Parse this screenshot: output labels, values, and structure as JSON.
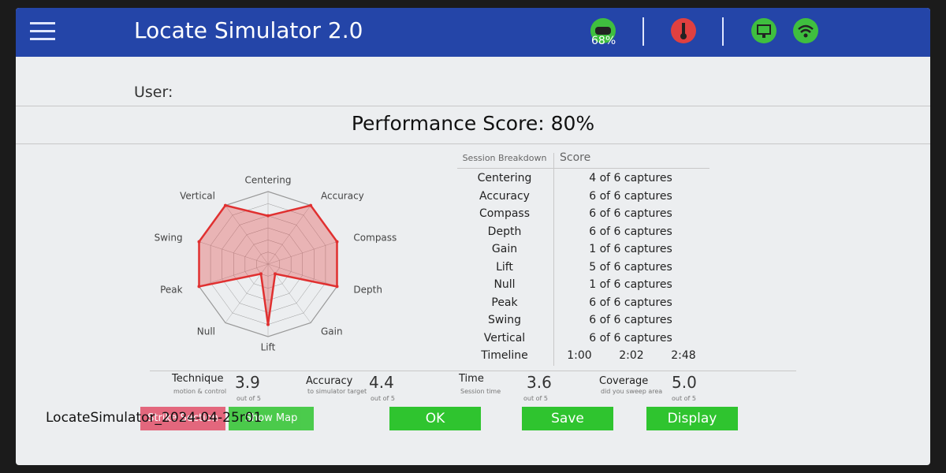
{
  "header": {
    "title": "Locate Simulator 2.0",
    "battery": "68%"
  },
  "user_label": "User:",
  "performance_score": "Performance Score: 80%",
  "radar": {
    "type": "radar",
    "axes": [
      "Centering",
      "Accuracy",
      "Compass",
      "Depth",
      "Gain",
      "Lift",
      "Null",
      "Peak",
      "Swing",
      "Vertical"
    ],
    "values": [
      4,
      6,
      6,
      6,
      1,
      5,
      1,
      6,
      6,
      6
    ],
    "rlim": [
      0,
      6
    ],
    "color": "#e03030",
    "grid": true
  },
  "table": {
    "headers": [
      "Session Breakdown",
      "Score"
    ],
    "rows": [
      [
        "Centering",
        "4 of 6 captures"
      ],
      [
        "Accuracy",
        "6 of 6 captures"
      ],
      [
        "Compass",
        "6 of 6 captures"
      ],
      [
        "Depth",
        "6 of 6 captures"
      ],
      [
        "Gain",
        "1 of 6 captures"
      ],
      [
        "Lift",
        "5 of 6 captures"
      ],
      [
        "Null",
        "1 of 6 captures"
      ],
      [
        "Peak",
        "6 of 6 captures"
      ],
      [
        "Swing",
        "6 of 6 captures"
      ],
      [
        "Vertical",
        "6 of 6 captures"
      ]
    ],
    "timeline": {
      "label": "Timeline",
      "marks": [
        "1:00",
        "2:02",
        "2:48"
      ]
    }
  },
  "metrics": [
    {
      "name": "Technique",
      "caption": "motion & control",
      "score": "3.9",
      "out_of": "out of 5"
    },
    {
      "name": "Accuracy",
      "caption": "to simulator target",
      "score": "4.4",
      "out_of": "out of 5"
    },
    {
      "name": "Time",
      "caption": "Session time",
      "score": "3.6",
      "out_of": "out of 5"
    },
    {
      "name": "Coverage",
      "caption": "did you sweep area",
      "score": "5.0",
      "out_of": "out of 5"
    }
  ],
  "file_name": "LocateSimulator_2024-04-25r01",
  "buttons": [
    "Strike Section",
    "Show Map",
    "OK",
    "Save",
    "Display"
  ]
}
